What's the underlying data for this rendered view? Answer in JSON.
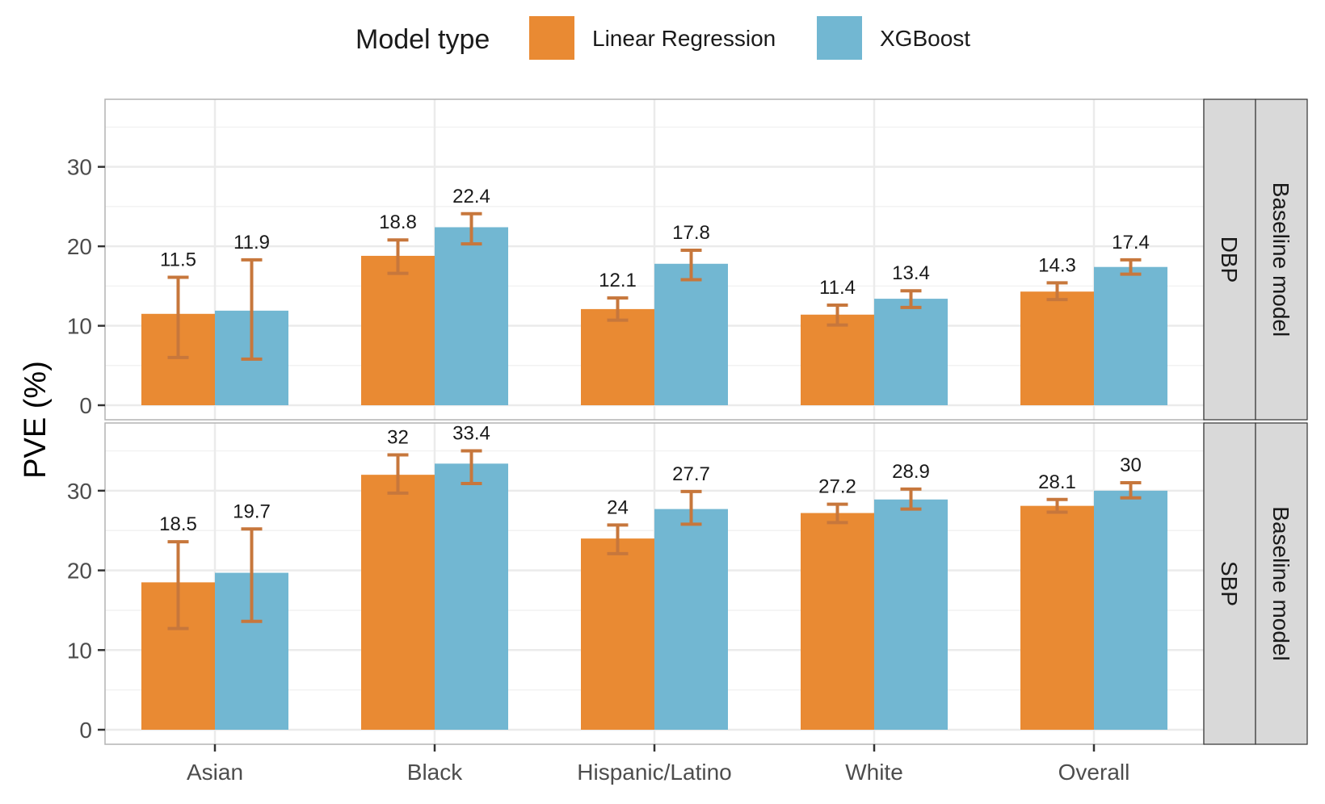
{
  "chart_data": {
    "type": "bar",
    "ylabel": "PVE (%)",
    "xlabel": "",
    "legend": {
      "title": "Model type",
      "position": "top",
      "entries": [
        "Linear Regression",
        "XGBoost"
      ]
    },
    "categories": [
      "Asian",
      "Black",
      "Hispanic/Latino",
      "White",
      "Overall"
    ],
    "ylim": [
      0,
      38.5
    ],
    "yticks": [
      "0",
      "10",
      "20",
      "30"
    ],
    "grid": true,
    "facet_column_label": "Baseline model",
    "panels": [
      {
        "strip": "DBP",
        "series": [
          {
            "name": "Linear Regression",
            "color": "#E98A33",
            "values": [
              11.5,
              18.8,
              12.1,
              11.4,
              14.3
            ],
            "labels": [
              "11.5",
              "18.8",
              "12.1",
              "11.4",
              "14.3"
            ],
            "ci_low": [
              6.0,
              16.6,
              10.7,
              10.1,
              13.3
            ],
            "ci_high": [
              16.1,
              20.8,
              13.5,
              12.6,
              15.4
            ]
          },
          {
            "name": "XGBoost",
            "color": "#72B7D2",
            "values": [
              11.9,
              22.4,
              17.8,
              13.4,
              17.4
            ],
            "labels": [
              "11.9",
              "22.4",
              "17.8",
              "13.4",
              "17.4"
            ],
            "ci_low": [
              5.8,
              20.3,
              15.8,
              12.3,
              16.5
            ],
            "ci_high": [
              18.3,
              24.1,
              19.5,
              14.4,
              18.3
            ]
          }
        ]
      },
      {
        "strip": "SBP",
        "series": [
          {
            "name": "Linear Regression",
            "color": "#E98A33",
            "values": [
              18.5,
              32,
              24,
              27.2,
              28.1
            ],
            "labels": [
              "18.5",
              "32",
              "24",
              "27.2",
              "28.1"
            ],
            "ci_low": [
              12.7,
              29.7,
              22.1,
              26.0,
              27.3
            ],
            "ci_high": [
              23.6,
              34.5,
              25.7,
              28.3,
              28.9
            ]
          },
          {
            "name": "XGBoost",
            "color": "#72B7D2",
            "values": [
              19.7,
              33.4,
              27.7,
              28.9,
              30
            ],
            "labels": [
              "19.7",
              "33.4",
              "27.7",
              "28.9",
              "30"
            ],
            "ci_low": [
              13.6,
              30.9,
              25.8,
              27.7,
              29.1
            ],
            "ci_high": [
              25.2,
              35.0,
              29.9,
              30.2,
              31.0
            ]
          }
        ]
      }
    ]
  },
  "style": {
    "errorbar_color": "#C7773C",
    "panel_border": "#b3b3b3",
    "grid_major": "#ebebeb",
    "grid_minor": "#f2f2f2",
    "strip_fill": "#d9d9d9"
  }
}
